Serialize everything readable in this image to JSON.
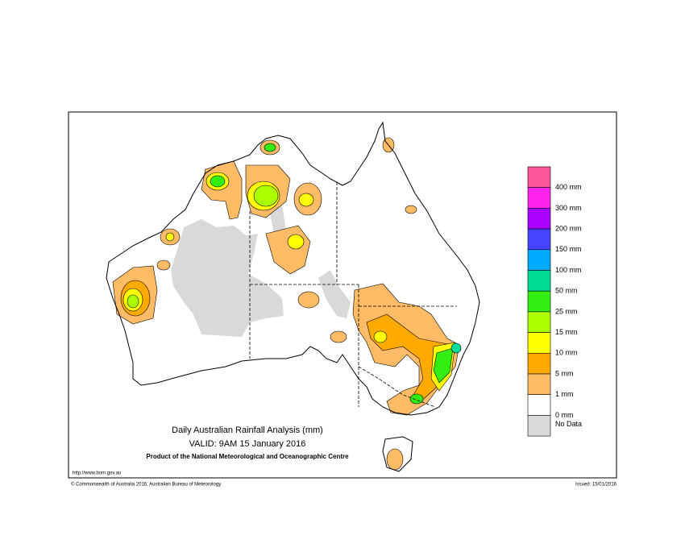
{
  "map": {
    "title": "Daily Australian Rainfall Analysis (mm)",
    "valid": "VALID: 9AM 15 January 2016",
    "product": "Product of the National Meteorological and Oceanographic Centre",
    "url": "http://www.bom.gov.au",
    "copyright": "© Commonwealth of Australia 2016, Australian Bureau of Meteorology",
    "issued": "Issued: 15/01/2016",
    "legend": {
      "colors": [
        "#ff5599",
        "#ff22ee",
        "#aa00ff",
        "#4444ff",
        "#00aaff",
        "#00dd99",
        "#33ee11",
        "#aaff00",
        "#ffff00",
        "#ffaa00",
        "#ffbb66",
        "#ffffff",
        "#d9d9d9"
      ],
      "labels": [
        "400 mm",
        "300 mm",
        "200 mm",
        "150 mm",
        "100 mm",
        "50 mm",
        "25 mm",
        "15 mm",
        "10 mm",
        "5 mm",
        "1 mm",
        "0 mm",
        "No Data"
      ]
    }
  }
}
